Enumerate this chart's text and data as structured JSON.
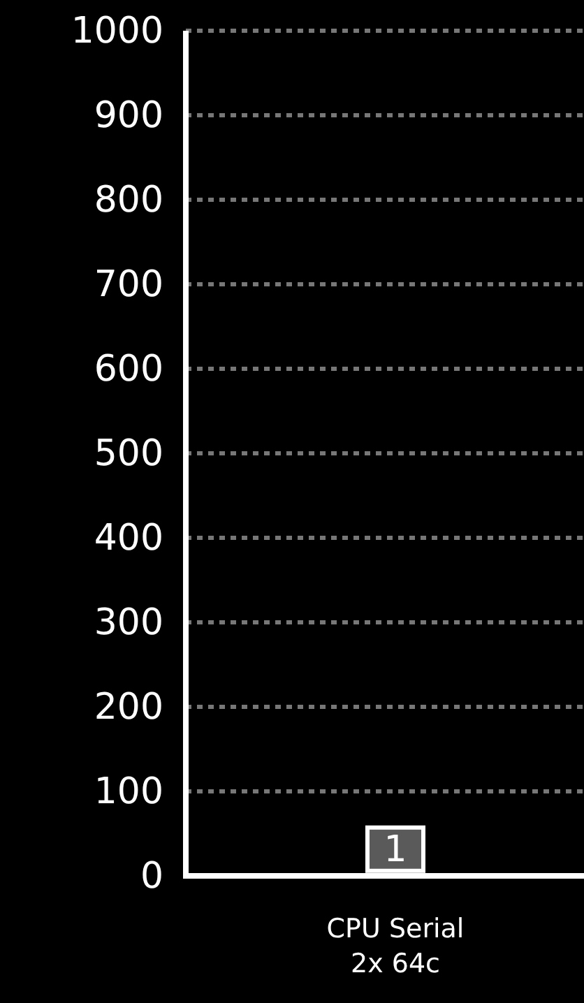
{
  "chart_data": {
    "type": "bar",
    "categories": [
      "CPU Serial\n2x 64c"
    ],
    "values": [
      1
    ],
    "color": "#5a5a5a",
    "data_labels": true,
    "ylim": [
      0,
      1000
    ],
    "yticks": [
      0,
      100,
      200,
      300,
      400,
      500,
      600,
      700,
      800,
      900,
      1000
    ],
    "grid": "y"
  }
}
